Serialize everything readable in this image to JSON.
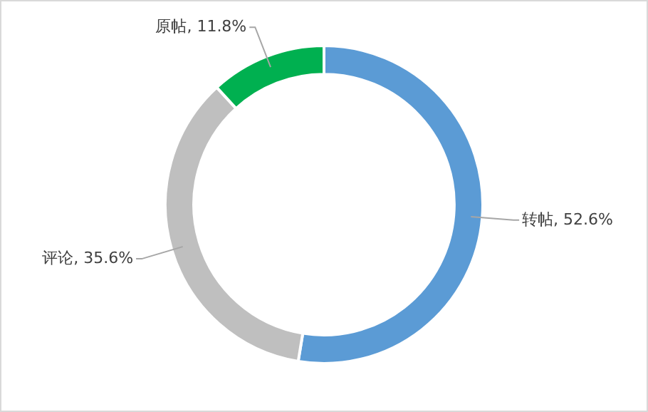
{
  "chart_data": {
    "type": "donut",
    "categories": [
      "转帖",
      "评论",
      "原帖"
    ],
    "values": [
      52.6,
      35.6,
      11.8
    ],
    "value_labels": [
      "52.6%",
      "35.6%",
      "11.8%"
    ],
    "colors": [
      "#5b9bd5",
      "#bfbfbf",
      "#00b050"
    ],
    "legend": false
  }
}
